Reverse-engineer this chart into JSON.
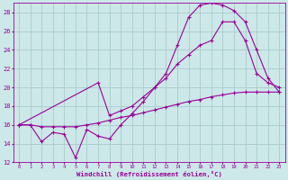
{
  "xlabel": "Windchill (Refroidissement éolien,°C)",
  "background_color": "#cce8e8",
  "grid_color": "#aacccc",
  "line_color": "#990099",
  "xlim": [
    -0.5,
    23.5
  ],
  "ylim": [
    12,
    29
  ],
  "xticks": [
    0,
    1,
    2,
    3,
    4,
    5,
    6,
    7,
    8,
    9,
    10,
    11,
    12,
    13,
    14,
    15,
    16,
    17,
    18,
    19,
    20,
    21,
    22,
    23
  ],
  "yticks": [
    12,
    14,
    16,
    18,
    20,
    22,
    24,
    26,
    28
  ],
  "line1_x": [
    0,
    1,
    2,
    3,
    4,
    5,
    6,
    7,
    8,
    9,
    10,
    11,
    12,
    13,
    14,
    15,
    16,
    17,
    18,
    19,
    20,
    21,
    22,
    23
  ],
  "line1_y": [
    16.0,
    16.0,
    14.2,
    15.2,
    15.0,
    12.5,
    15.5,
    14.8,
    14.5,
    16.0,
    17.2,
    18.5,
    20.0,
    21.5,
    24.5,
    27.5,
    28.8,
    29.0,
    28.8,
    28.2,
    27.0,
    24.0,
    21.0,
    19.5
  ],
  "line2_x": [
    0,
    7,
    8,
    9,
    10,
    11,
    12,
    13,
    14,
    15,
    16,
    17,
    18,
    19,
    20,
    21,
    22,
    23
  ],
  "line2_y": [
    16.0,
    20.5,
    17.0,
    17.5,
    18.0,
    19.0,
    20.0,
    21.0,
    22.5,
    23.5,
    24.5,
    25.0,
    27.0,
    27.0,
    25.0,
    21.5,
    20.5,
    20.0
  ],
  "line3_x": [
    0,
    1,
    2,
    3,
    4,
    5,
    6,
    7,
    8,
    9,
    10,
    11,
    12,
    13,
    14,
    15,
    16,
    17,
    18,
    19,
    20,
    21,
    22,
    23
  ],
  "line3_y": [
    16.0,
    16.0,
    15.8,
    15.8,
    15.8,
    15.8,
    16.0,
    16.2,
    16.5,
    16.8,
    17.0,
    17.3,
    17.6,
    17.9,
    18.2,
    18.5,
    18.7,
    19.0,
    19.2,
    19.4,
    19.5,
    19.5,
    19.5,
    19.5
  ]
}
